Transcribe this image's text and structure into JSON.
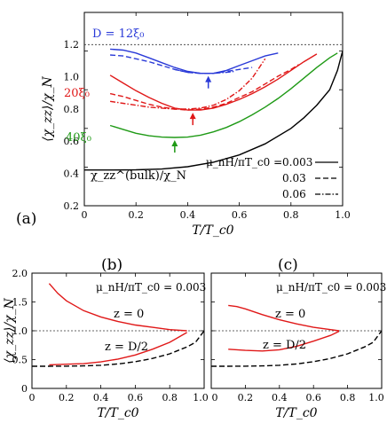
{
  "chart_data": [
    {
      "panel": "(a)",
      "type": "line",
      "xlabel": "T/T_c0",
      "ylabel": "⟨χ_zz⟩/χ_N",
      "xlim": [
        0,
        1.0
      ],
      "ylim": [
        0.2,
        1.2
      ],
      "x_ticks": [
        "0",
        "0.2",
        "0.4",
        "0.6",
        "0.8",
        "1.0"
      ],
      "y_ticks": [
        "0.2",
        "0.4",
        "0.6",
        "0.8",
        "1.0",
        "1.2"
      ],
      "reference_line_y": 1.0,
      "labels": {
        "d12": "D = 12ξ₀",
        "d20": "20ξ₀",
        "d40": "40ξ₀",
        "bulk": "χ_zz^(bulk)/χ_N"
      },
      "legend": {
        "title": "μ_nH/πT_c0 =",
        "items": [
          "0.003",
          "0.03",
          "0.06"
        ],
        "placement": "bottom-right"
      },
      "colors": {
        "d12": "#2a3ad8",
        "d20": "#e01818",
        "d40": "#1f9a16",
        "bulk": "#000000"
      },
      "series": [
        {
          "name": "D = 12ξ₀",
          "style": "solid",
          "color": "#2a3ad8",
          "points": [
            [
              0.1,
              1.01
            ],
            [
              0.15,
              1.005
            ],
            [
              0.2,
              0.99
            ],
            [
              0.25,
              0.965
            ],
            [
              0.3,
              0.94
            ],
            [
              0.35,
              0.915
            ],
            [
              0.4,
              0.895
            ],
            [
              0.45,
              0.885
            ],
            [
              0.5,
              0.885
            ],
            [
              0.55,
              0.9
            ],
            [
              0.6,
              0.925
            ],
            [
              0.65,
              0.95
            ],
            [
              0.7,
              0.975
            ],
            [
              0.75,
              0.99
            ]
          ]
        },
        {
          "name": "D = 12ξ₀",
          "style": "dashed",
          "color": "#2a3ad8",
          "points": [
            [
              0.1,
              0.98
            ],
            [
              0.15,
              0.975
            ],
            [
              0.2,
              0.96
            ],
            [
              0.25,
              0.945
            ],
            [
              0.3,
              0.925
            ],
            [
              0.35,
              0.905
            ],
            [
              0.4,
              0.89
            ],
            [
              0.45,
              0.885
            ],
            [
              0.5,
              0.885
            ],
            [
              0.55,
              0.895
            ],
            [
              0.6,
              0.905
            ],
            [
              0.65,
              0.915
            ]
          ]
        },
        {
          "name": "D = 12ξ₀",
          "style": "dashdot",
          "color": "#2a3ad8",
          "points": [
            [
              0.35,
              0.905
            ],
            [
              0.4,
              0.89
            ],
            [
              0.45,
              0.885
            ],
            [
              0.5,
              0.885
            ],
            [
              0.55,
              0.89
            ],
            [
              0.58,
              0.895
            ]
          ]
        },
        {
          "name": "20ξ₀",
          "style": "solid",
          "color": "#e01818",
          "points": [
            [
              0.1,
              0.875
            ],
            [
              0.15,
              0.835
            ],
            [
              0.2,
              0.795
            ],
            [
              0.25,
              0.76
            ],
            [
              0.3,
              0.73
            ],
            [
              0.35,
              0.705
            ],
            [
              0.4,
              0.695
            ],
            [
              0.45,
              0.695
            ],
            [
              0.5,
              0.705
            ],
            [
              0.55,
              0.725
            ],
            [
              0.6,
              0.75
            ],
            [
              0.65,
              0.78
            ],
            [
              0.7,
              0.815
            ],
            [
              0.75,
              0.855
            ],
            [
              0.8,
              0.9
            ],
            [
              0.85,
              0.945
            ],
            [
              0.9,
              0.985
            ]
          ]
        },
        {
          "name": "20ξ₀",
          "style": "dashed",
          "color": "#e01818",
          "points": [
            [
              0.1,
              0.78
            ],
            [
              0.15,
              0.765
            ],
            [
              0.2,
              0.745
            ],
            [
              0.25,
              0.725
            ],
            [
              0.3,
              0.71
            ],
            [
              0.35,
              0.7
            ],
            [
              0.4,
              0.695
            ],
            [
              0.45,
              0.7
            ],
            [
              0.5,
              0.71
            ],
            [
              0.55,
              0.73
            ],
            [
              0.6,
              0.76
            ],
            [
              0.65,
              0.79
            ],
            [
              0.7,
              0.83
            ],
            [
              0.75,
              0.87
            ],
            [
              0.8,
              0.905
            ],
            [
              0.83,
              0.93
            ]
          ]
        },
        {
          "name": "20ξ₀",
          "style": "dashdot",
          "color": "#e01818",
          "points": [
            [
              0.1,
              0.74
            ],
            [
              0.15,
              0.73
            ],
            [
              0.2,
              0.72
            ],
            [
              0.25,
              0.71
            ],
            [
              0.3,
              0.705
            ],
            [
              0.35,
              0.7
            ],
            [
              0.4,
              0.7
            ],
            [
              0.45,
              0.705
            ],
            [
              0.5,
              0.72
            ],
            [
              0.55,
              0.75
            ],
            [
              0.6,
              0.795
            ],
            [
              0.65,
              0.86
            ],
            [
              0.68,
              0.92
            ],
            [
              0.7,
              0.96
            ]
          ]
        },
        {
          "name": "40ξ₀",
          "style": "solid",
          "color": "#1f9a16",
          "points": [
            [
              0.1,
              0.615
            ],
            [
              0.15,
              0.595
            ],
            [
              0.2,
              0.575
            ],
            [
              0.25,
              0.562
            ],
            [
              0.3,
              0.555
            ],
            [
              0.35,
              0.553
            ],
            [
              0.4,
              0.555
            ],
            [
              0.45,
              0.565
            ],
            [
              0.5,
              0.582
            ],
            [
              0.55,
              0.605
            ],
            [
              0.6,
              0.635
            ],
            [
              0.65,
              0.67
            ],
            [
              0.7,
              0.71
            ],
            [
              0.75,
              0.755
            ],
            [
              0.8,
              0.805
            ],
            [
              0.85,
              0.86
            ],
            [
              0.9,
              0.915
            ],
            [
              0.95,
              0.965
            ],
            [
              0.98,
              0.99
            ]
          ]
        },
        {
          "name": "χ_zz^(bulk)/χ_N",
          "style": "solid",
          "color": "#000000",
          "points": [
            [
              0.0,
              0.385
            ],
            [
              0.1,
              0.385
            ],
            [
              0.2,
              0.386
            ],
            [
              0.3,
              0.39
            ],
            [
              0.4,
              0.402
            ],
            [
              0.5,
              0.425
            ],
            [
              0.6,
              0.463
            ],
            [
              0.7,
              0.52
            ],
            [
              0.8,
              0.6
            ],
            [
              0.85,
              0.655
            ],
            [
              0.9,
              0.72
            ],
            [
              0.95,
              0.8
            ],
            [
              0.98,
              0.9
            ],
            [
              1.0,
              1.0
            ]
          ]
        }
      ],
      "arrows": [
        {
          "color": "#2a3ad8",
          "x": 0.48,
          "y": 0.885
        },
        {
          "color": "#e01818",
          "x": 0.42,
          "y": 0.695
        },
        {
          "color": "#1f9a16",
          "x": 0.35,
          "y": 0.553
        }
      ]
    },
    {
      "panel": "(b)",
      "type": "line",
      "xlabel": "T/T_c0",
      "ylabel": "⟨χ_zz⟩/χ_N",
      "xlim": [
        0,
        1.0
      ],
      "ylim": [
        0,
        2.0
      ],
      "x_ticks": [
        "0",
        "0.2",
        "0.4",
        "0.6",
        "0.8",
        "1.0"
      ],
      "y_ticks": [
        "0",
        "0.5",
        "1.0",
        "1.5",
        "2.0"
      ],
      "reference_line_y": 1.0,
      "parameter": "μ_nH/πT_c0 = 0.003",
      "labels": {
        "surface": "z = 0",
        "center": "z = D/2"
      },
      "series": [
        {
          "name": "z = 0",
          "style": "solid",
          "color": "#e01818",
          "points": [
            [
              0.1,
              1.82
            ],
            [
              0.15,
              1.65
            ],
            [
              0.2,
              1.52
            ],
            [
              0.3,
              1.35
            ],
            [
              0.4,
              1.24
            ],
            [
              0.5,
              1.16
            ],
            [
              0.6,
              1.1
            ],
            [
              0.7,
              1.06
            ],
            [
              0.8,
              1.02
            ],
            [
              0.9,
              1.0
            ]
          ]
        },
        {
          "name": "z = D/2",
          "style": "solid",
          "color": "#e01818",
          "points": [
            [
              0.1,
              0.41
            ],
            [
              0.2,
              0.42
            ],
            [
              0.3,
              0.43
            ],
            [
              0.4,
              0.46
            ],
            [
              0.5,
              0.51
            ],
            [
              0.6,
              0.58
            ],
            [
              0.7,
              0.68
            ],
            [
              0.8,
              0.8
            ],
            [
              0.9,
              0.97
            ]
          ]
        },
        {
          "name": "bulk",
          "style": "dashed",
          "color": "#000000",
          "points": [
            [
              0.0,
              0.385
            ],
            [
              0.1,
              0.385
            ],
            [
              0.2,
              0.386
            ],
            [
              0.3,
              0.39
            ],
            [
              0.4,
              0.402
            ],
            [
              0.5,
              0.425
            ],
            [
              0.6,
              0.463
            ],
            [
              0.7,
              0.52
            ],
            [
              0.8,
              0.6
            ],
            [
              0.9,
              0.72
            ],
            [
              0.95,
              0.8
            ],
            [
              1.0,
              1.0
            ]
          ]
        }
      ]
    },
    {
      "panel": "(c)",
      "type": "line",
      "xlabel": "T/T_c0",
      "xlim": [
        0,
        1.0
      ],
      "ylim": [
        0,
        2.0
      ],
      "x_ticks": [
        "0",
        "0.2",
        "0.4",
        "0.6",
        "0.8",
        "1.0"
      ],
      "reference_line_y": 1.0,
      "parameter": "μ_nH/πT_c0 = 0.003",
      "labels": {
        "surface": "z = 0",
        "center": "z = D/2"
      },
      "series": [
        {
          "name": "z = 0",
          "style": "solid",
          "color": "#e01818",
          "points": [
            [
              0.1,
              1.44
            ],
            [
              0.15,
              1.42
            ],
            [
              0.2,
              1.38
            ],
            [
              0.3,
              1.28
            ],
            [
              0.4,
              1.19
            ],
            [
              0.5,
              1.12
            ],
            [
              0.6,
              1.06
            ],
            [
              0.7,
              1.02
            ],
            [
              0.75,
              1.0
            ]
          ]
        },
        {
          "name": "z = D/2",
          "style": "solid",
          "color": "#e01818",
          "points": [
            [
              0.1,
              0.68
            ],
            [
              0.15,
              0.67
            ],
            [
              0.2,
              0.66
            ],
            [
              0.3,
              0.65
            ],
            [
              0.4,
              0.67
            ],
            [
              0.5,
              0.73
            ],
            [
              0.6,
              0.82
            ],
            [
              0.7,
              0.92
            ],
            [
              0.75,
              0.99
            ]
          ]
        },
        {
          "name": "bulk",
          "style": "dashed",
          "color": "#000000",
          "points": [
            [
              0.0,
              0.385
            ],
            [
              0.1,
              0.385
            ],
            [
              0.2,
              0.386
            ],
            [
              0.3,
              0.39
            ],
            [
              0.4,
              0.402
            ],
            [
              0.5,
              0.425
            ],
            [
              0.6,
              0.463
            ],
            [
              0.7,
              0.52
            ],
            [
              0.8,
              0.6
            ],
            [
              0.9,
              0.72
            ],
            [
              0.95,
              0.8
            ],
            [
              1.0,
              1.0
            ]
          ]
        }
      ]
    }
  ]
}
